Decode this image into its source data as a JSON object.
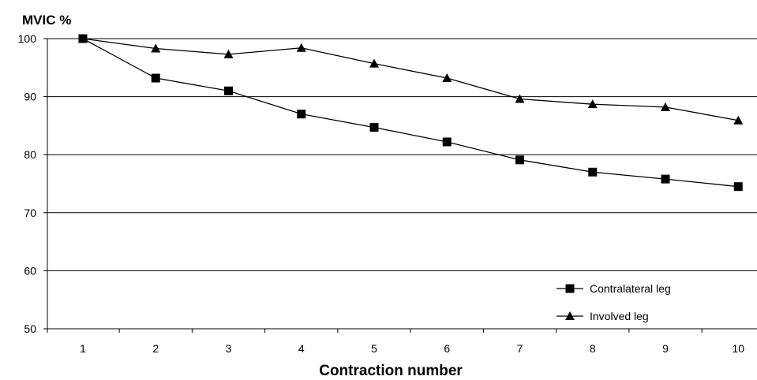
{
  "chart_data": {
    "type": "line",
    "x": [
      1,
      2,
      3,
      4,
      5,
      6,
      7,
      8,
      9,
      10
    ],
    "series": [
      {
        "name": "Contralateral leg",
        "marker": "square",
        "values": [
          100,
          93.2,
          91.0,
          87.0,
          84.7,
          82.2,
          79.1,
          77.0,
          75.8,
          74.5
        ]
      },
      {
        "name": "Involved leg",
        "marker": "triangle",
        "values": [
          100,
          98.3,
          97.3,
          98.4,
          95.7,
          93.2,
          89.6,
          88.7,
          88.2,
          85.9
        ]
      }
    ],
    "ylabel": "MVIC %",
    "xlabel": "Contraction number",
    "ylim": [
      50,
      100
    ],
    "yticks": [
      50,
      60,
      70,
      80,
      90,
      100
    ],
    "grid": "horizontal",
    "legend": "bottom-right",
    "colors": {
      "line": "#000000",
      "grid": "#000000",
      "marker": "#000000"
    }
  }
}
